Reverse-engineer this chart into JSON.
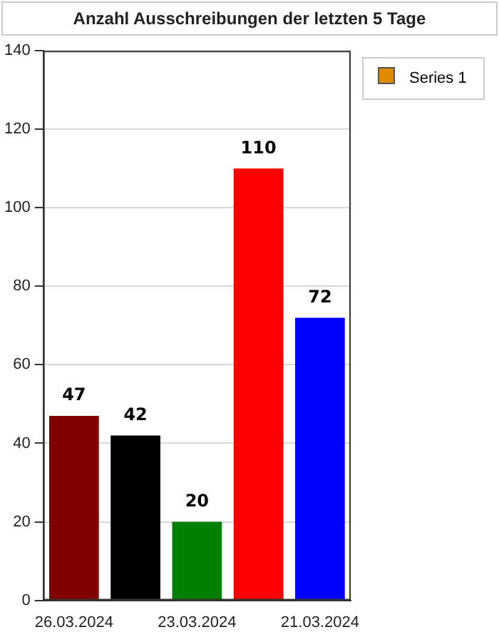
{
  "chart_data": {
    "type": "bar",
    "title": "Anzahl Ausschreibungen der letzten 5 Tage",
    "categories": [
      "26.03.2024",
      null,
      "23.03.2024",
      null,
      "21.03.2024"
    ],
    "series": [
      {
        "name": "Series 1",
        "color": "#e08a00",
        "values": [
          47,
          42,
          20,
          110,
          72
        ],
        "colors": [
          "#800000",
          "#000000",
          "#008000",
          "#ff0000",
          "#0000ff"
        ]
      }
    ],
    "ylim": [
      0,
      140
    ],
    "yticks": [
      0,
      20,
      40,
      60,
      80,
      100,
      120,
      140
    ],
    "grid": "y",
    "legend": "top right",
    "data_labels": true
  }
}
